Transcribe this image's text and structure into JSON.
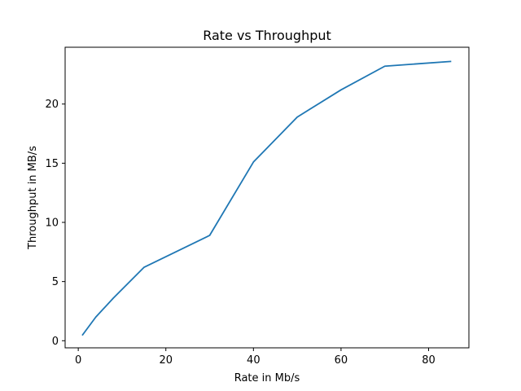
{
  "chart_data": {
    "type": "line",
    "title": "Rate vs Throughput",
    "xlabel": "Rate in Mb/s",
    "ylabel": "Throughput in MB/s",
    "xlim": [
      -3,
      89.2
    ],
    "ylim": [
      -0.6,
      24.8
    ],
    "xticks": [
      0,
      20,
      40,
      60,
      80
    ],
    "yticks": [
      0,
      5,
      10,
      15,
      20
    ],
    "grid": false,
    "series": [
      {
        "color": "#1f77b4",
        "x": [
          1,
          4,
          8,
          15,
          30,
          40,
          50,
          60,
          70,
          85
        ],
        "y": [
          0.5,
          2.0,
          3.6,
          6.2,
          8.9,
          15.1,
          18.9,
          21.2,
          23.2,
          23.6
        ]
      }
    ]
  }
}
